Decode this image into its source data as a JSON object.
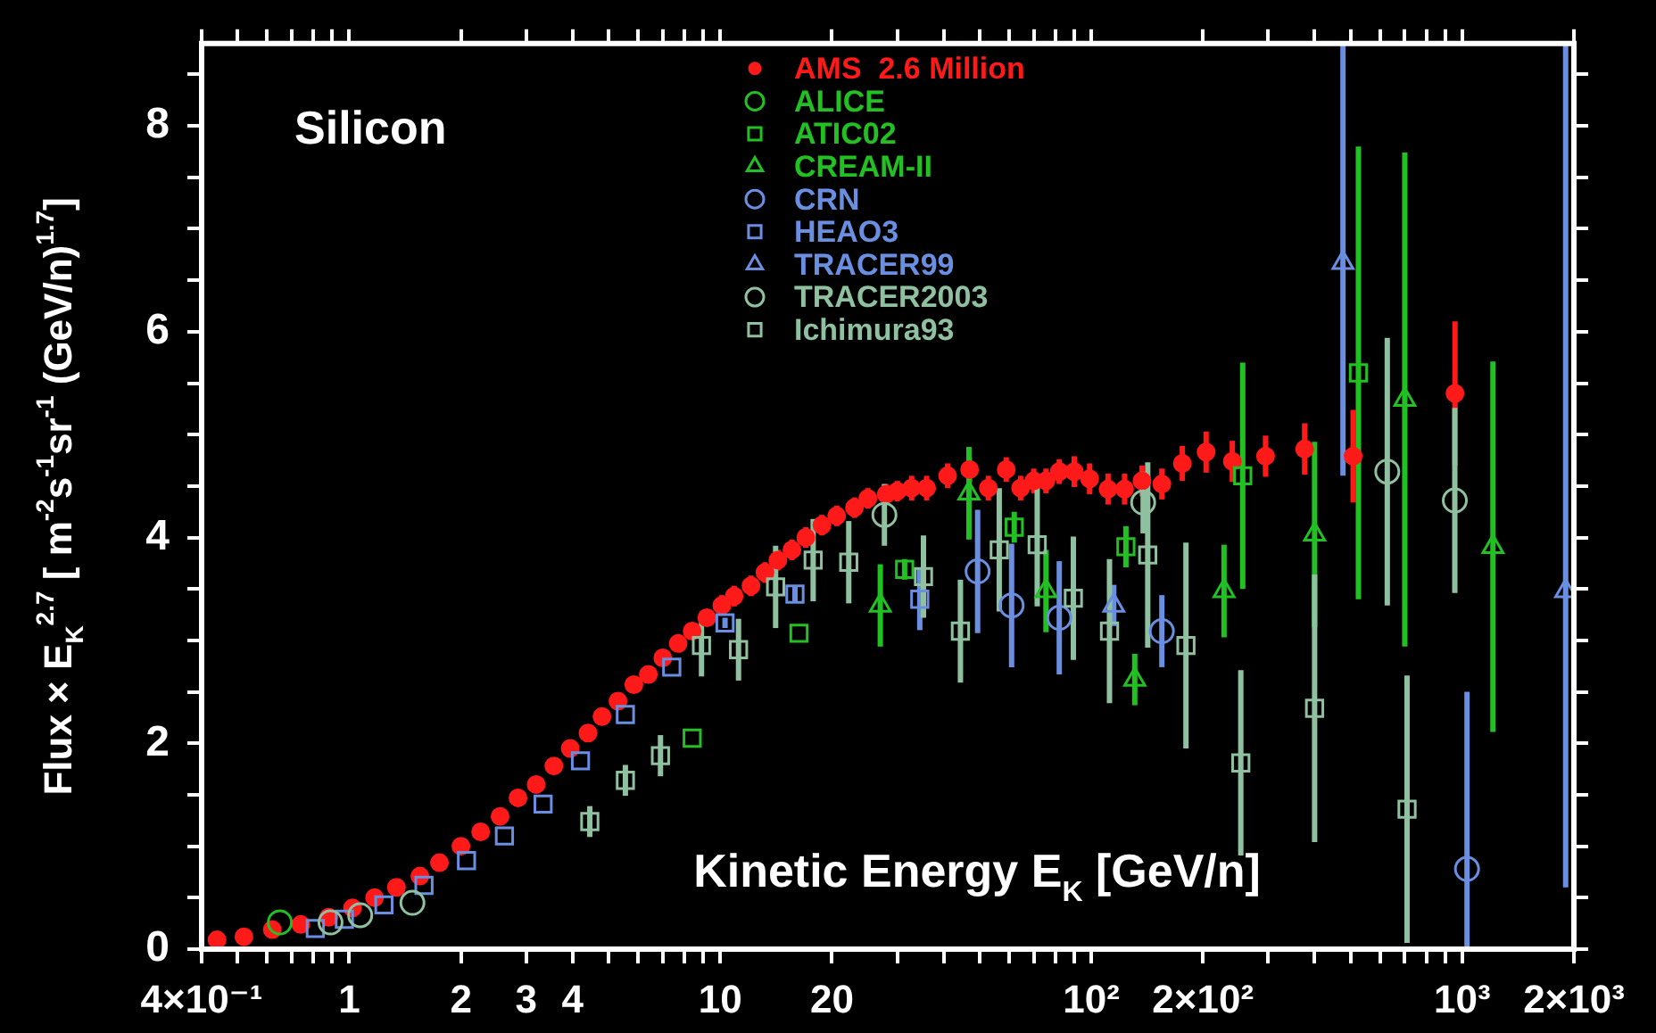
{
  "chart_data": {
    "type": "scatter",
    "title": "Silicon",
    "xlabel": "Kinetic Energy E$_{K}$ [GeV/n]",
    "ylabel": "Flux × E$_{K}$$^{2.7}$ [ m$^{-2}$s$^{-1}$sr$^{-1}$ (GeV/n)$^{1.7}$]",
    "log": "x",
    "legend": "top",
    "xlim": [
      0.4,
      2000
    ],
    "xticks": [
      {
        "value": 0.4,
        "label": "4×10⁻¹"
      },
      {
        "value": 0.5,
        "label": null
      },
      {
        "value": 0.6,
        "label": null
      },
      {
        "value": 0.7,
        "label": null
      },
      {
        "value": 0.8,
        "label": null
      },
      {
        "value": 0.9,
        "label": null
      },
      1,
      2,
      3,
      4,
      {
        "value": 5,
        "label": null
      },
      {
        "value": 6,
        "label": null
      },
      {
        "value": 7,
        "label": null
      },
      {
        "value": 8,
        "label": null
      },
      {
        "value": 9,
        "label": null
      },
      10,
      20,
      {
        "value": 30,
        "label": null
      },
      {
        "value": 40,
        "label": null
      },
      {
        "value": 50,
        "label": null
      },
      {
        "value": 60,
        "label": null
      },
      {
        "value": 70,
        "label": null
      },
      {
        "value": 80,
        "label": null
      },
      {
        "value": 90,
        "label": null
      },
      {
        "value": 100,
        "label": "10²"
      },
      {
        "value": 200,
        "label": "2×10²"
      },
      {
        "value": 300,
        "label": null
      },
      {
        "value": 400,
        "label": null
      },
      {
        "value": 500,
        "label": null
      },
      {
        "value": 600,
        "label": null
      },
      {
        "value": 700,
        "label": null
      },
      {
        "value": 800,
        "label": null
      },
      {
        "value": 900,
        "label": null
      },
      {
        "value": 1000,
        "label": "10³"
      },
      {
        "value": 2000,
        "label": "2×10³"
      }
    ],
    "ylim": [
      0,
      8.8
    ],
    "yticks": [
      0,
      {
        "value": 0.5,
        "label": null
      },
      {
        "value": 1,
        "label": null
      },
      {
        "value": 1.5,
        "label": null
      },
      2,
      {
        "value": 2.5,
        "label": null
      },
      {
        "value": 3,
        "label": null
      },
      {
        "value": 3.5,
        "label": null
      },
      4,
      {
        "value": 4.5,
        "label": null
      },
      {
        "value": 5,
        "label": null
      },
      {
        "value": 5.5,
        "label": null
      },
      6,
      {
        "value": 6.5,
        "label": null
      },
      {
        "value": 7,
        "label": null
      },
      {
        "value": 7.5,
        "label": null
      },
      8,
      {
        "value": 8.5,
        "label": null
      }
    ],
    "series": [
      {
        "name": "AMS  2.6 Million",
        "color": "#ff1a1a",
        "marker": "circle",
        "x": [
          0.44,
          0.52,
          0.62,
          0.74,
          0.88,
          1.02,
          1.17,
          1.34,
          1.55,
          1.75,
          2.0,
          2.26,
          2.55,
          2.85,
          3.19,
          3.56,
          3.94,
          4.4,
          4.8,
          5.3,
          5.85,
          6.4,
          7.0,
          7.7,
          8.4,
          9.2,
          10.1,
          10.9,
          12.1,
          13.2,
          14.3,
          15.6,
          17,
          18.8,
          20.6,
          23,
          25,
          28,
          30,
          32.8,
          36,
          41,
          47,
          52.8,
          59,
          64.5,
          70,
          75.5,
          82,
          90,
          99,
          111,
          123,
          137,
          155,
          176,
          204,
          240,
          295,
          376,
          508,
          956
        ],
        "values": [
          0.09,
          0.12,
          0.19,
          0.24,
          0.31,
          0.4,
          0.5,
          0.6,
          0.71,
          0.84,
          1.0,
          1.14,
          1.29,
          1.47,
          1.6,
          1.78,
          1.95,
          2.1,
          2.26,
          2.41,
          2.57,
          2.67,
          2.83,
          2.97,
          3.09,
          3.22,
          3.34,
          3.43,
          3.53,
          3.66,
          3.78,
          3.88,
          4.0,
          4.12,
          4.21,
          4.29,
          4.38,
          4.42,
          4.45,
          4.48,
          4.48,
          4.6,
          4.66,
          4.48,
          4.66,
          4.48,
          4.55,
          4.55,
          4.64,
          4.64,
          4.57,
          4.47,
          4.47,
          4.55,
          4.52,
          4.72,
          4.83,
          4.74,
          4.79,
          4.86,
          4.79,
          5.4
        ],
        "errors": [
          null,
          null,
          null,
          null,
          null,
          null,
          null,
          null,
          null,
          null,
          null,
          null,
          null,
          null,
          null,
          null,
          null,
          null,
          null,
          null,
          null,
          null,
          null,
          null,
          null,
          null,
          0.1,
          0.1,
          0.1,
          0.1,
          0.1,
          0.1,
          0.1,
          0.1,
          0.1,
          0.1,
          0.1,
          0.1,
          0.1,
          0.12,
          0.12,
          0.12,
          0.12,
          0.12,
          0.12,
          0.12,
          0.12,
          0.12,
          0.12,
          0.15,
          0.15,
          0.15,
          0.15,
          0.15,
          0.15,
          0.17,
          0.2,
          0.2,
          0.2,
          0.25,
          0.45,
          0.7
        ]
      },
      {
        "name": "ALICE",
        "color": "#22c022",
        "marker": "circle",
        "x": [
          0.65
        ],
        "values": [
          0.26
        ]
      },
      {
        "name": "ATIC02",
        "color": "#22c022",
        "marker": "square",
        "x": [
          8.4,
          16.3,
          31.4,
          62,
          124,
          256,
          525
        ],
        "values": [
          2.05,
          3.07,
          3.69,
          4.1,
          3.91,
          4.6,
          5.6
        ],
        "errors": [
          null,
          null,
          0.1,
          0.15,
          0.2,
          1.1,
          2.2
        ]
      },
      {
        "name": "CREAM-II",
        "color": "#22c022",
        "marker": "triangle",
        "x": [
          27,
          46.8,
          75.5,
          131,
          228,
          400,
          700,
          1210
        ],
        "values": [
          3.34,
          4.43,
          3.48,
          2.62,
          3.48,
          4.03,
          5.34,
          3.91
        ],
        "errors": [
          0.4,
          0.45,
          0.4,
          0.25,
          0.45,
          0.9,
          2.4,
          1.8
        ]
      },
      {
        "name": "CRN",
        "color": "#6a8ee0",
        "marker": "circle",
        "x": [
          49.4,
          61,
          82,
          155,
          1030
        ],
        "values": [
          3.67,
          3.34,
          3.22,
          3.09,
          0.78
        ],
        "errors": [
          0.6,
          0.6,
          0.55,
          0.35,
          [
            0,
            2.5
          ]
        ]
      },
      {
        "name": "HEAO3",
        "color": "#6a8ee0",
        "marker": "square",
        "x": [
          0.81,
          0.97,
          1.24,
          1.59,
          2.07,
          2.62,
          3.33,
          4.2,
          5.55,
          7.4,
          10.3,
          15.9,
          34.5
        ],
        "values": [
          0.2,
          0.29,
          0.43,
          0.62,
          0.86,
          1.1,
          1.41,
          1.83,
          2.28,
          2.74,
          3.17,
          3.45,
          3.4
        ],
        "errors": [
          null,
          null,
          null,
          null,
          null,
          null,
          null,
          null,
          null,
          null,
          0.05,
          0.08,
          0.3
        ]
      },
      {
        "name": "TRACER99",
        "color": "#6a8ee0",
        "marker": "triangle",
        "x": [
          115,
          477,
          1900
        ],
        "values": [
          3.34,
          6.67,
          3.48
        ],
        "errors": [
          0.2,
          [
            4.6,
            8.8
          ],
          [
            0.6,
            8.8
          ]
        ]
      },
      {
        "name": "TRACER2003",
        "color": "#8fc0a0",
        "marker": "circle",
        "x": [
          0.89,
          1.07,
          1.48,
          27.7,
          138,
          628,
          955
        ],
        "values": [
          0.26,
          0.33,
          0.45,
          4.22,
          4.34,
          4.64,
          4.36
        ],
        "errors": [
          null,
          null,
          null,
          0.3,
          0.3,
          1.3,
          0.9
        ]
      },
      {
        "name": "Ichimura93",
        "color": "#8fc0a0",
        "marker": "square",
        "x": [
          4.45,
          5.55,
          6.9,
          8.9,
          11.2,
          14.1,
          17.8,
          22.2,
          35.3,
          44.4,
          56.5,
          71.5,
          89.5,
          112,
          142,
          180,
          253,
          400,
          710
        ],
        "values": [
          1.24,
          1.64,
          1.88,
          2.95,
          2.91,
          3.52,
          3.78,
          3.76,
          3.62,
          3.09,
          3.88,
          3.93,
          3.41,
          3.09,
          3.83,
          2.95,
          1.81,
          2.34,
          1.36
        ],
        "errors": [
          0.15,
          0.15,
          0.2,
          0.3,
          0.3,
          0.4,
          0.4,
          0.4,
          0.4,
          0.5,
          0.6,
          0.6,
          0.6,
          0.7,
          0.9,
          1.0,
          0.9,
          1.3,
          1.3
        ]
      }
    ]
  }
}
